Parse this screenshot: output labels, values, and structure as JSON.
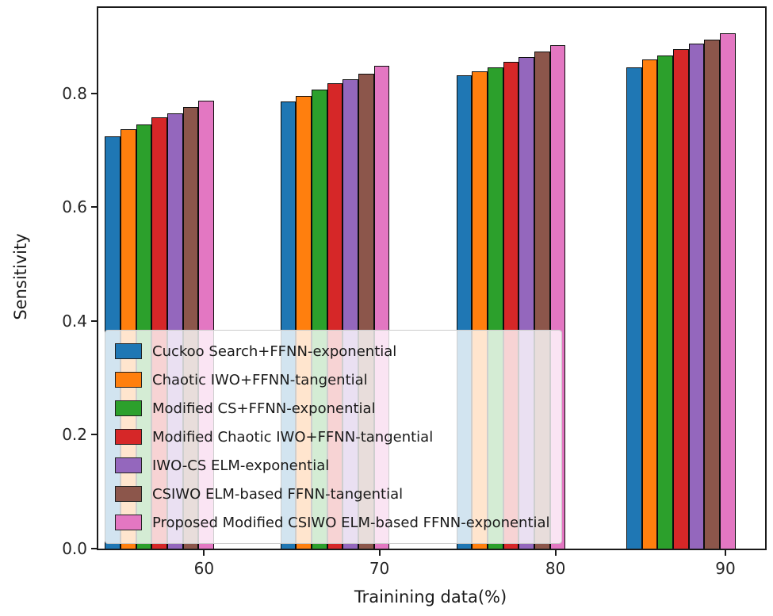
{
  "chart_data": {
    "type": "bar",
    "title": "",
    "xlabel": "Trainining data(%)",
    "ylabel": "Sensitivity",
    "categories": [
      "60",
      "70",
      "80",
      "90"
    ],
    "ylim": [
      0,
      0.95
    ],
    "yticks": [
      0.0,
      0.2,
      0.4,
      0.6,
      0.8
    ],
    "grid": false,
    "legend_position": "lower-left",
    "bar_edge_color": "#000000",
    "series": [
      {
        "name": "Cuckoo Search+FFNN-exponential",
        "color": "#1f77b4",
        "values": [
          0.724,
          0.786,
          0.831,
          0.845
        ]
      },
      {
        "name": "Chaotic IWO+FFNN-tangential",
        "color": "#ff7f0e",
        "values": [
          0.737,
          0.796,
          0.838,
          0.859
        ]
      },
      {
        "name": "Modified CS+FFNN-exponential",
        "color": "#2ca02c",
        "values": [
          0.745,
          0.806,
          0.846,
          0.866
        ]
      },
      {
        "name": "Modified Chaotic IWO+FFNN-tangential",
        "color": "#d62728",
        "values": [
          0.758,
          0.817,
          0.855,
          0.878
        ]
      },
      {
        "name": "IWO-CS ELM-exponential",
        "color": "#9467bd",
        "values": [
          0.765,
          0.825,
          0.864,
          0.887
        ]
      },
      {
        "name": "CSIWO ELM-based FFNN-tangential",
        "color": "#8c564b",
        "values": [
          0.776,
          0.835,
          0.873,
          0.894
        ]
      },
      {
        "name": "Proposed Modified CSIWO ELM-based FFNN-exponential",
        "color": "#e377c2",
        "values": [
          0.787,
          0.848,
          0.884,
          0.906
        ]
      }
    ]
  }
}
